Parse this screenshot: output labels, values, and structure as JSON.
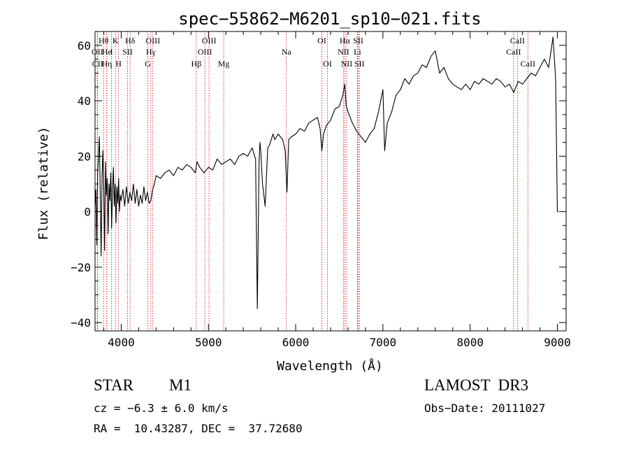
{
  "chart_data": {
    "type": "line",
    "title": "spec−55862−M6201_sp10−021.fits",
    "xlabel": "Wavelength (Å)",
    "ylabel": "Flux (relative)",
    "xlim": [
      3700,
      9100
    ],
    "ylim": [
      -43,
      65
    ],
    "xticks": [
      4000,
      5000,
      6000,
      7000,
      8000,
      9000
    ],
    "xtick_labels": [
      "4000",
      "5000",
      "6000",
      "7000",
      "8000",
      "9000"
    ],
    "yticks": [
      -40,
      -20,
      0,
      20,
      40,
      60
    ],
    "ytick_labels": [
      "−40",
      "−20",
      "0",
      "20",
      "40",
      "60"
    ],
    "grid": false,
    "line_color": "#000000",
    "marker_color": "#cc0000",
    "series": [
      {
        "name": "spectrum",
        "x": [
          3700,
          3710,
          3720,
          3730,
          3740,
          3750,
          3760,
          3770,
          3780,
          3790,
          3800,
          3810,
          3820,
          3830,
          3840,
          3850,
          3860,
          3870,
          3880,
          3890,
          3900,
          3910,
          3920,
          3930,
          3940,
          3950,
          3960,
          3970,
          3980,
          3990,
          4000,
          4020,
          4040,
          4060,
          4080,
          4100,
          4120,
          4140,
          4160,
          4180,
          4200,
          4220,
          4240,
          4260,
          4280,
          4300,
          4320,
          4340,
          4360,
          4380,
          4400,
          4450,
          4500,
          4550,
          4600,
          4650,
          4700,
          4750,
          4800,
          4850,
          4870,
          4900,
          4950,
          5000,
          5050,
          5100,
          5150,
          5200,
          5250,
          5300,
          5350,
          5400,
          5450,
          5500,
          5540,
          5560,
          5580,
          5590,
          5600,
          5620,
          5650,
          5680,
          5700,
          5720,
          5740,
          5760,
          5800,
          5850,
          5880,
          5900,
          5920,
          5950,
          6000,
          6050,
          6100,
          6150,
          6200,
          6250,
          6280,
          6300,
          6320,
          6350,
          6400,
          6450,
          6500,
          6540,
          6563,
          6580,
          6600,
          6650,
          6700,
          6750,
          6800,
          6850,
          6900,
          6950,
          7000,
          7020,
          7050,
          7100,
          7150,
          7200,
          7250,
          7300,
          7350,
          7400,
          7450,
          7500,
          7550,
          7600,
          7650,
          7700,
          7750,
          7800,
          7850,
          7900,
          7950,
          8000,
          8050,
          8100,
          8150,
          8200,
          8250,
          8300,
          8350,
          8400,
          8450,
          8500,
          8550,
          8600,
          8650,
          8700,
          8750,
          8800,
          8850,
          8900,
          8950,
          8980,
          9000,
          9010
        ],
        "y": [
          2,
          8,
          -12,
          14,
          20,
          27,
          5,
          -16,
          12,
          22,
          8,
          -14,
          18,
          6,
          12,
          -8,
          10,
          4,
          14,
          -6,
          8,
          16,
          2,
          10,
          -4,
          9,
          3,
          12,
          0,
          6,
          4,
          8,
          2,
          9,
          3,
          7,
          4,
          10,
          3,
          8,
          2,
          6,
          3,
          9,
          4,
          7,
          3,
          4,
          8,
          10,
          13,
          12,
          14,
          15,
          13,
          16,
          15,
          17,
          16,
          14,
          18,
          16,
          14,
          16,
          15,
          19,
          17,
          18,
          19,
          17,
          20,
          21,
          20,
          23,
          19,
          -35,
          18,
          25,
          22,
          10,
          2,
          23,
          24,
          26,
          28,
          26,
          28,
          26,
          22,
          7,
          26,
          27,
          28,
          30,
          29,
          32,
          33,
          34,
          30,
          22,
          28,
          31,
          33,
          37,
          38,
          42,
          46,
          38,
          36,
          32,
          29,
          27,
          25,
          28,
          30,
          36,
          44,
          22,
          32,
          36,
          42,
          44,
          48,
          46,
          49,
          50,
          53,
          52,
          56,
          58,
          50,
          52,
          48,
          46,
          45,
          44,
          46,
          44,
          47,
          46,
          48,
          47,
          46,
          48,
          47,
          45,
          46,
          43,
          47,
          46,
          48,
          50,
          49,
          52,
          55,
          52,
          63,
          48,
          0,
          0
        ]
      }
    ],
    "line_markers": [
      {
        "label": "Hθ",
        "wave": 3798,
        "row": 1
      },
      {
        "label": "OII",
        "wave": 3727,
        "row": 2
      },
      {
        "label": "CII",
        "wave": 3730,
        "row": 3
      },
      {
        "label": "He",
        "wave": 3835,
        "row": 2
      },
      {
        "label": "Hη",
        "wave": 3835,
        "row": 3
      },
      {
        "label": "K",
        "wave": 3934,
        "row": 1
      },
      {
        "label": "I",
        "wave": 3889,
        "row": 2
      },
      {
        "label": "H",
        "wave": 3969,
        "row": 3
      },
      {
        "label": "Hδ",
        "wave": 4102,
        "row": 1
      },
      {
        "label": "SII",
        "wave": 4072,
        "row": 2
      },
      {
        "label": "OIII",
        "wave": 4363,
        "row": 1
      },
      {
        "label": "Hγ",
        "wave": 4340,
        "row": 2
      },
      {
        "label": "G",
        "wave": 4305,
        "row": 3
      },
      {
        "label": "OIII",
        "wave": 5007,
        "row": 1
      },
      {
        "label": "OIII",
        "wave": 4959,
        "row": 2
      },
      {
        "label": "Hβ",
        "wave": 4861,
        "row": 3
      },
      {
        "label": "Mg",
        "wave": 5175,
        "row": 3
      },
      {
        "label": "Na",
        "wave": 5893,
        "row": 2
      },
      {
        "label": "OI",
        "wave": 6300,
        "row": 1
      },
      {
        "label": "OI",
        "wave": 6364,
        "row": 3
      },
      {
        "label": "Hα",
        "wave": 6563,
        "row": 1
      },
      {
        "label": "NII",
        "wave": 6548,
        "row": 2
      },
      {
        "label": "NII",
        "wave": 6584,
        "row": 3
      },
      {
        "label": "SII",
        "wave": 6717,
        "row": 1
      },
      {
        "label": "Li",
        "wave": 6708,
        "row": 2
      },
      {
        "label": "SII",
        "wave": 6731,
        "row": 3
      },
      {
        "label": "CaII",
        "wave": 8542,
        "row": 1
      },
      {
        "label": "CaII",
        "wave": 8498,
        "row": 2
      },
      {
        "label": "CaII",
        "wave": 8662,
        "row": 3
      }
    ]
  },
  "info": {
    "object_class": "STAR",
    "subclass": "M1",
    "survey": "LAMOST  DR3",
    "cz": "cz = −6.3 ± 6.0 km/s",
    "obs_date": "Obs−Date: 20111027",
    "radec": "RA =  10.43287, DEC =  37.72680"
  }
}
